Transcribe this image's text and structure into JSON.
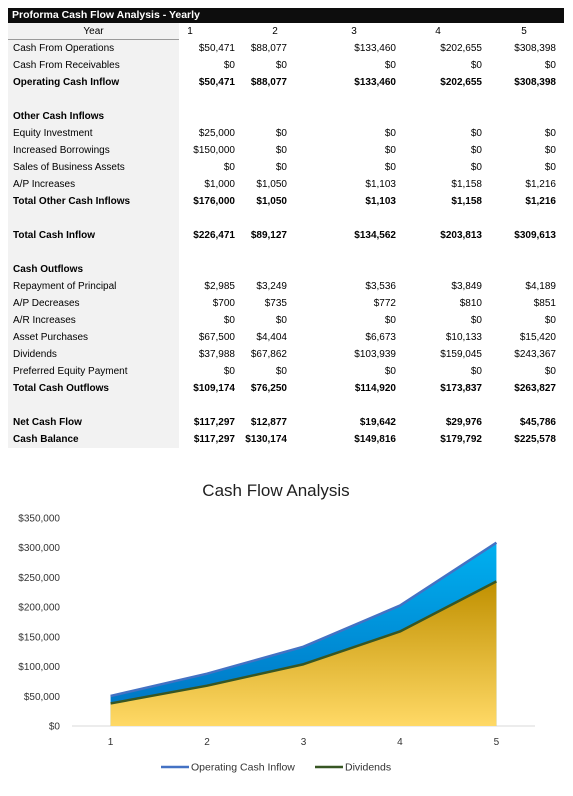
{
  "sheet": {
    "title": "Proforma Cash Flow Analysis - Yearly",
    "year_label": "Year",
    "years": [
      "1",
      "2",
      "3",
      "4",
      "5"
    ],
    "rows": [
      {
        "label": "Cash From Operations",
        "values": [
          "$50,471",
          "$88,077",
          "$133,460",
          "$202,655",
          "$308,398"
        ],
        "bold": false
      },
      {
        "label": "Cash From Receivables",
        "values": [
          "$0",
          "$0",
          "$0",
          "$0",
          "$0"
        ],
        "bold": false
      },
      {
        "label": "Operating Cash Inflow",
        "values": [
          "$50,471",
          "$88,077",
          "$133,460",
          "$202,655",
          "$308,398"
        ],
        "bold": true
      },
      {
        "spacer": true
      },
      {
        "label": "Other Cash Inflows",
        "values": [
          "",
          "",
          "",
          "",
          ""
        ],
        "bold": true
      },
      {
        "label": "Equity Investment",
        "values": [
          "$25,000",
          "$0",
          "$0",
          "$0",
          "$0"
        ],
        "bold": false
      },
      {
        "label": "Increased Borrowings",
        "values": [
          "$150,000",
          "$0",
          "$0",
          "$0",
          "$0"
        ],
        "bold": false
      },
      {
        "label": "Sales of Business Assets",
        "values": [
          "$0",
          "$0",
          "$0",
          "$0",
          "$0"
        ],
        "bold": false
      },
      {
        "label": "A/P Increases",
        "values": [
          "$1,000",
          "$1,050",
          "$1,103",
          "$1,158",
          "$1,216"
        ],
        "bold": false
      },
      {
        "label": "Total Other Cash Inflows",
        "values": [
          "$176,000",
          "$1,050",
          "$1,103",
          "$1,158",
          "$1,216"
        ],
        "bold": true
      },
      {
        "spacer": true
      },
      {
        "label": "Total Cash Inflow",
        "values": [
          "$226,471",
          "$89,127",
          "$134,562",
          "$203,813",
          "$309,613"
        ],
        "bold": true
      },
      {
        "spacer": true
      },
      {
        "label": "Cash Outflows",
        "values": [
          "",
          "",
          "",
          "",
          ""
        ],
        "bold": true
      },
      {
        "label": "Repayment of Principal",
        "values": [
          "$2,985",
          "$3,249",
          "$3,536",
          "$3,849",
          "$4,189"
        ],
        "bold": false
      },
      {
        "label": "A/P Decreases",
        "values": [
          "$700",
          "$735",
          "$772",
          "$810",
          "$851"
        ],
        "bold": false
      },
      {
        "label": "A/R Increases",
        "values": [
          "$0",
          "$0",
          "$0",
          "$0",
          "$0"
        ],
        "bold": false
      },
      {
        "label": "Asset Purchases",
        "values": [
          "$67,500",
          "$4,404",
          "$6,673",
          "$10,133",
          "$15,420"
        ],
        "bold": false
      },
      {
        "label": "Dividends",
        "values": [
          "$37,988",
          "$67,862",
          "$103,939",
          "$159,045",
          "$243,367"
        ],
        "bold": false
      },
      {
        "label": "Preferred Equity Payment",
        "values": [
          "$0",
          "$0",
          "$0",
          "$0",
          "$0"
        ],
        "bold": false
      },
      {
        "label": "Total Cash Outflows",
        "values": [
          "$109,174",
          "$76,250",
          "$114,920",
          "$173,837",
          "$263,827"
        ],
        "bold": true
      },
      {
        "spacer": true
      },
      {
        "label": "Net Cash Flow",
        "values": [
          "$117,297",
          "$12,877",
          "$19,642",
          "$29,976",
          "$45,786"
        ],
        "bold": true
      },
      {
        "label": "Cash Balance",
        "values": [
          "$117,297",
          "$130,174",
          "$149,816",
          "$179,792",
          "$225,578"
        ],
        "bold": true
      }
    ]
  },
  "chart_data": {
    "type": "area",
    "title": "Cash Flow Analysis",
    "x": [
      1,
      2,
      3,
      4,
      5
    ],
    "x_tick_labels": [
      "1",
      "2",
      "3",
      "4",
      "5"
    ],
    "ylim": [
      0,
      350000
    ],
    "y_ticks": [
      0,
      50000,
      100000,
      150000,
      200000,
      250000,
      300000,
      350000
    ],
    "y_tick_labels": [
      "$0",
      "$50,000",
      "$100,000",
      "$150,000",
      "$200,000",
      "$250,000",
      "$300,000",
      "$350,000"
    ],
    "grid": false,
    "legend_position": "bottom",
    "series": [
      {
        "name": "Operating Cash Inflow",
        "values": [
          50471,
          88077,
          133460,
          202655,
          308398
        ],
        "line_color": "#4472c4",
        "fill_top": "#00b0f0",
        "fill_bottom": "#0070c0"
      },
      {
        "name": "Dividends",
        "values": [
          37988,
          67862,
          103939,
          159045,
          243367
        ],
        "line_color": "#375623",
        "fill_top": "#c09000",
        "fill_bottom": "#ffd966"
      }
    ]
  }
}
